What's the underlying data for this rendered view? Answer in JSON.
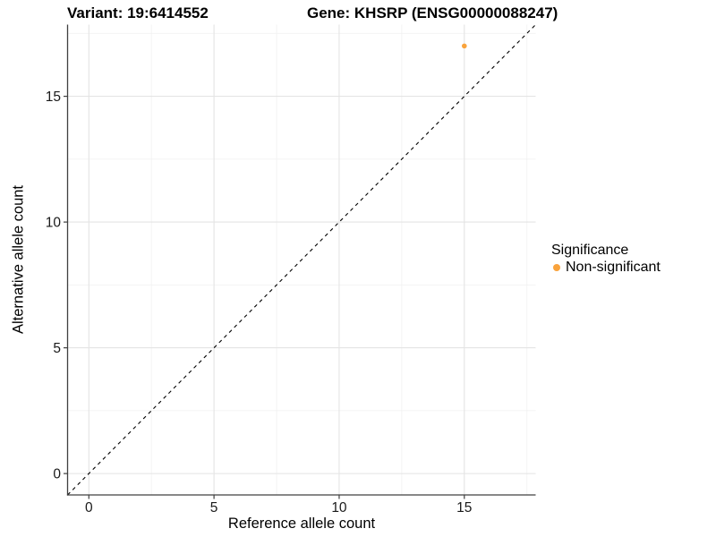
{
  "titles": {
    "variant": "Variant: 19:6414552",
    "gene": "Gene: KHSRP (ENSG00000088247)"
  },
  "axes": {
    "x_label": "Reference allele count",
    "y_label": "Alternative allele count"
  },
  "legend": {
    "title": "Significance",
    "items": [
      {
        "label": "Non-significant",
        "color": "#F9A33C"
      }
    ]
  },
  "chart_data": {
    "type": "scatter",
    "title": "Variant: 19:6414552 | Gene: KHSRP (ENSG00000088247)",
    "xlabel": "Reference allele count",
    "ylabel": "Alternative allele count",
    "xlim": [
      -0.85,
      17.85
    ],
    "ylim": [
      -0.85,
      17.85
    ],
    "x_major_ticks": [
      0,
      5,
      10,
      15
    ],
    "x_minor_ticks": [
      2.5,
      7.5,
      12.5,
      17.5
    ],
    "y_major_ticks": [
      0,
      5,
      10,
      15
    ],
    "y_minor_ticks": [
      2.5,
      7.5,
      12.5,
      17.5
    ],
    "series": [
      {
        "name": "Non-significant",
        "color": "#F9A33C",
        "points": [
          {
            "x": 15,
            "y": 17
          }
        ]
      }
    ],
    "reference_line": {
      "slope": 1,
      "intercept": 0,
      "linetype": "dashed",
      "color": "#000000"
    },
    "grid": true,
    "legend_position": "right"
  }
}
